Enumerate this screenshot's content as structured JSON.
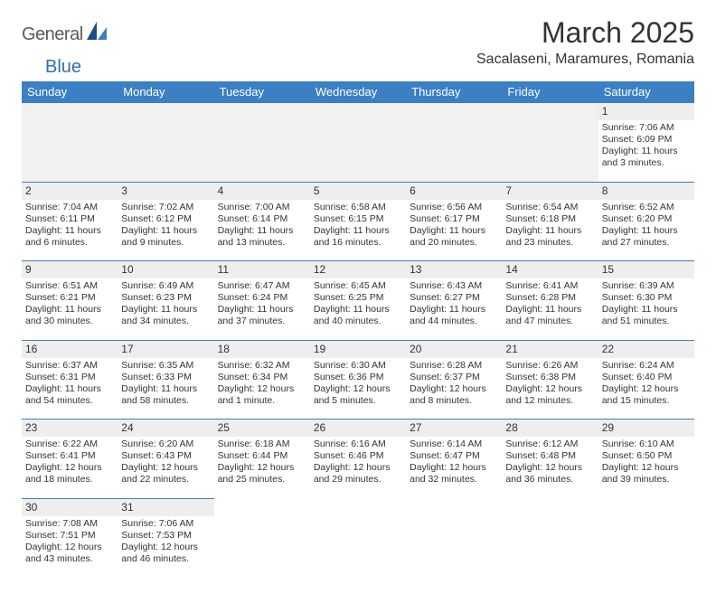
{
  "brand": {
    "part1": "General",
    "part2": "Blue"
  },
  "title": "March 2025",
  "location": "Sacalaseni, Maramures, Romania",
  "colors": {
    "header_bg": "#3b7fc4",
    "header_text": "#ffffff",
    "daynum_bg": "#eeeeee",
    "border": "#3b7fc4",
    "text": "#333333",
    "logo_gray": "#5a5a5a",
    "logo_blue": "#2f6fb0"
  },
  "weekdays": [
    "Sunday",
    "Monday",
    "Tuesday",
    "Wednesday",
    "Thursday",
    "Friday",
    "Saturday"
  ],
  "weeks": [
    [
      null,
      null,
      null,
      null,
      null,
      null,
      {
        "n": "1",
        "sr": "Sunrise: 7:06 AM",
        "ss": "Sunset: 6:09 PM",
        "d1": "Daylight: 11 hours",
        "d2": "and 3 minutes."
      }
    ],
    [
      {
        "n": "2",
        "sr": "Sunrise: 7:04 AM",
        "ss": "Sunset: 6:11 PM",
        "d1": "Daylight: 11 hours",
        "d2": "and 6 minutes."
      },
      {
        "n": "3",
        "sr": "Sunrise: 7:02 AM",
        "ss": "Sunset: 6:12 PM",
        "d1": "Daylight: 11 hours",
        "d2": "and 9 minutes."
      },
      {
        "n": "4",
        "sr": "Sunrise: 7:00 AM",
        "ss": "Sunset: 6:14 PM",
        "d1": "Daylight: 11 hours",
        "d2": "and 13 minutes."
      },
      {
        "n": "5",
        "sr": "Sunrise: 6:58 AM",
        "ss": "Sunset: 6:15 PM",
        "d1": "Daylight: 11 hours",
        "d2": "and 16 minutes."
      },
      {
        "n": "6",
        "sr": "Sunrise: 6:56 AM",
        "ss": "Sunset: 6:17 PM",
        "d1": "Daylight: 11 hours",
        "d2": "and 20 minutes."
      },
      {
        "n": "7",
        "sr": "Sunrise: 6:54 AM",
        "ss": "Sunset: 6:18 PM",
        "d1": "Daylight: 11 hours",
        "d2": "and 23 minutes."
      },
      {
        "n": "8",
        "sr": "Sunrise: 6:52 AM",
        "ss": "Sunset: 6:20 PM",
        "d1": "Daylight: 11 hours",
        "d2": "and 27 minutes."
      }
    ],
    [
      {
        "n": "9",
        "sr": "Sunrise: 6:51 AM",
        "ss": "Sunset: 6:21 PM",
        "d1": "Daylight: 11 hours",
        "d2": "and 30 minutes."
      },
      {
        "n": "10",
        "sr": "Sunrise: 6:49 AM",
        "ss": "Sunset: 6:23 PM",
        "d1": "Daylight: 11 hours",
        "d2": "and 34 minutes."
      },
      {
        "n": "11",
        "sr": "Sunrise: 6:47 AM",
        "ss": "Sunset: 6:24 PM",
        "d1": "Daylight: 11 hours",
        "d2": "and 37 minutes."
      },
      {
        "n": "12",
        "sr": "Sunrise: 6:45 AM",
        "ss": "Sunset: 6:25 PM",
        "d1": "Daylight: 11 hours",
        "d2": "and 40 minutes."
      },
      {
        "n": "13",
        "sr": "Sunrise: 6:43 AM",
        "ss": "Sunset: 6:27 PM",
        "d1": "Daylight: 11 hours",
        "d2": "and 44 minutes."
      },
      {
        "n": "14",
        "sr": "Sunrise: 6:41 AM",
        "ss": "Sunset: 6:28 PM",
        "d1": "Daylight: 11 hours",
        "d2": "and 47 minutes."
      },
      {
        "n": "15",
        "sr": "Sunrise: 6:39 AM",
        "ss": "Sunset: 6:30 PM",
        "d1": "Daylight: 11 hours",
        "d2": "and 51 minutes."
      }
    ],
    [
      {
        "n": "16",
        "sr": "Sunrise: 6:37 AM",
        "ss": "Sunset: 6:31 PM",
        "d1": "Daylight: 11 hours",
        "d2": "and 54 minutes."
      },
      {
        "n": "17",
        "sr": "Sunrise: 6:35 AM",
        "ss": "Sunset: 6:33 PM",
        "d1": "Daylight: 11 hours",
        "d2": "and 58 minutes."
      },
      {
        "n": "18",
        "sr": "Sunrise: 6:32 AM",
        "ss": "Sunset: 6:34 PM",
        "d1": "Daylight: 12 hours",
        "d2": "and 1 minute."
      },
      {
        "n": "19",
        "sr": "Sunrise: 6:30 AM",
        "ss": "Sunset: 6:36 PM",
        "d1": "Daylight: 12 hours",
        "d2": "and 5 minutes."
      },
      {
        "n": "20",
        "sr": "Sunrise: 6:28 AM",
        "ss": "Sunset: 6:37 PM",
        "d1": "Daylight: 12 hours",
        "d2": "and 8 minutes."
      },
      {
        "n": "21",
        "sr": "Sunrise: 6:26 AM",
        "ss": "Sunset: 6:38 PM",
        "d1": "Daylight: 12 hours",
        "d2": "and 12 minutes."
      },
      {
        "n": "22",
        "sr": "Sunrise: 6:24 AM",
        "ss": "Sunset: 6:40 PM",
        "d1": "Daylight: 12 hours",
        "d2": "and 15 minutes."
      }
    ],
    [
      {
        "n": "23",
        "sr": "Sunrise: 6:22 AM",
        "ss": "Sunset: 6:41 PM",
        "d1": "Daylight: 12 hours",
        "d2": "and 18 minutes."
      },
      {
        "n": "24",
        "sr": "Sunrise: 6:20 AM",
        "ss": "Sunset: 6:43 PM",
        "d1": "Daylight: 12 hours",
        "d2": "and 22 minutes."
      },
      {
        "n": "25",
        "sr": "Sunrise: 6:18 AM",
        "ss": "Sunset: 6:44 PM",
        "d1": "Daylight: 12 hours",
        "d2": "and 25 minutes."
      },
      {
        "n": "26",
        "sr": "Sunrise: 6:16 AM",
        "ss": "Sunset: 6:46 PM",
        "d1": "Daylight: 12 hours",
        "d2": "and 29 minutes."
      },
      {
        "n": "27",
        "sr": "Sunrise: 6:14 AM",
        "ss": "Sunset: 6:47 PM",
        "d1": "Daylight: 12 hours",
        "d2": "and 32 minutes."
      },
      {
        "n": "28",
        "sr": "Sunrise: 6:12 AM",
        "ss": "Sunset: 6:48 PM",
        "d1": "Daylight: 12 hours",
        "d2": "and 36 minutes."
      },
      {
        "n": "29",
        "sr": "Sunrise: 6:10 AM",
        "ss": "Sunset: 6:50 PM",
        "d1": "Daylight: 12 hours",
        "d2": "and 39 minutes."
      }
    ],
    [
      {
        "n": "30",
        "sr": "Sunrise: 7:08 AM",
        "ss": "Sunset: 7:51 PM",
        "d1": "Daylight: 12 hours",
        "d2": "and 43 minutes."
      },
      {
        "n": "31",
        "sr": "Sunrise: 7:06 AM",
        "ss": "Sunset: 7:53 PM",
        "d1": "Daylight: 12 hours",
        "d2": "and 46 minutes."
      },
      null,
      null,
      null,
      null,
      null
    ]
  ]
}
